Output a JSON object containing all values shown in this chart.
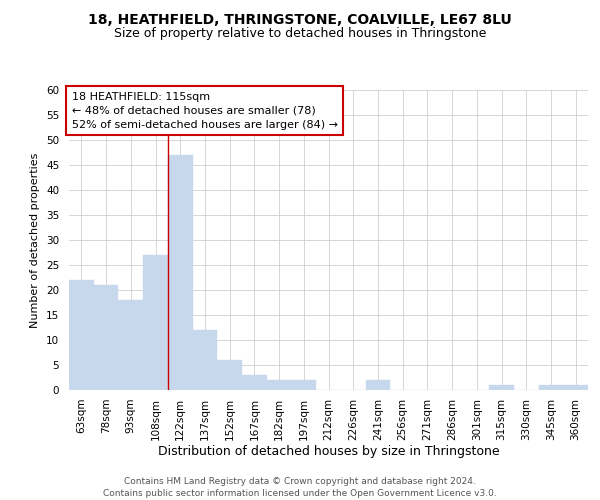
{
  "title_line1": "18, HEATHFIELD, THRINGSTONE, COALVILLE, LE67 8LU",
  "title_line2": "Size of property relative to detached houses in Thringstone",
  "xlabel": "Distribution of detached houses by size in Thringstone",
  "ylabel": "Number of detached properties",
  "categories": [
    "63sqm",
    "78sqm",
    "93sqm",
    "108sqm",
    "122sqm",
    "137sqm",
    "152sqm",
    "167sqm",
    "182sqm",
    "197sqm",
    "212sqm",
    "226sqm",
    "241sqm",
    "256sqm",
    "271sqm",
    "286sqm",
    "301sqm",
    "315sqm",
    "330sqm",
    "345sqm",
    "360sqm"
  ],
  "values": [
    22,
    21,
    18,
    27,
    47,
    12,
    6,
    3,
    2,
    2,
    0,
    0,
    2,
    0,
    0,
    0,
    0,
    1,
    0,
    1,
    1
  ],
  "bar_color": "#c8d8ec",
  "bar_edgecolor": "#c8d8ec",
  "grid_color": "#d0d0d0",
  "background_color": "#ffffff",
  "annotation_line1": "18 HEATHFIELD: 115sqm",
  "annotation_line2": "← 48% of detached houses are smaller (78)",
  "annotation_line3": "52% of semi-detached houses are larger (84) →",
  "annotation_box_facecolor": "#ffffff",
  "annotation_box_edgecolor": "#cc0000",
  "vline_color": "#cc0000",
  "vline_x": 3.5,
  "ylim": [
    0,
    60
  ],
  "yticks": [
    0,
    5,
    10,
    15,
    20,
    25,
    30,
    35,
    40,
    45,
    50,
    55,
    60
  ],
  "footnote_line1": "Contains HM Land Registry data © Crown copyright and database right 2024.",
  "footnote_line2": "Contains public sector information licensed under the Open Government Licence v3.0.",
  "title_fontsize": 10,
  "subtitle_fontsize": 9,
  "ylabel_fontsize": 8,
  "xlabel_fontsize": 9,
  "tick_fontsize": 7.5,
  "annotation_fontsize": 8,
  "footnote_fontsize": 6.5
}
